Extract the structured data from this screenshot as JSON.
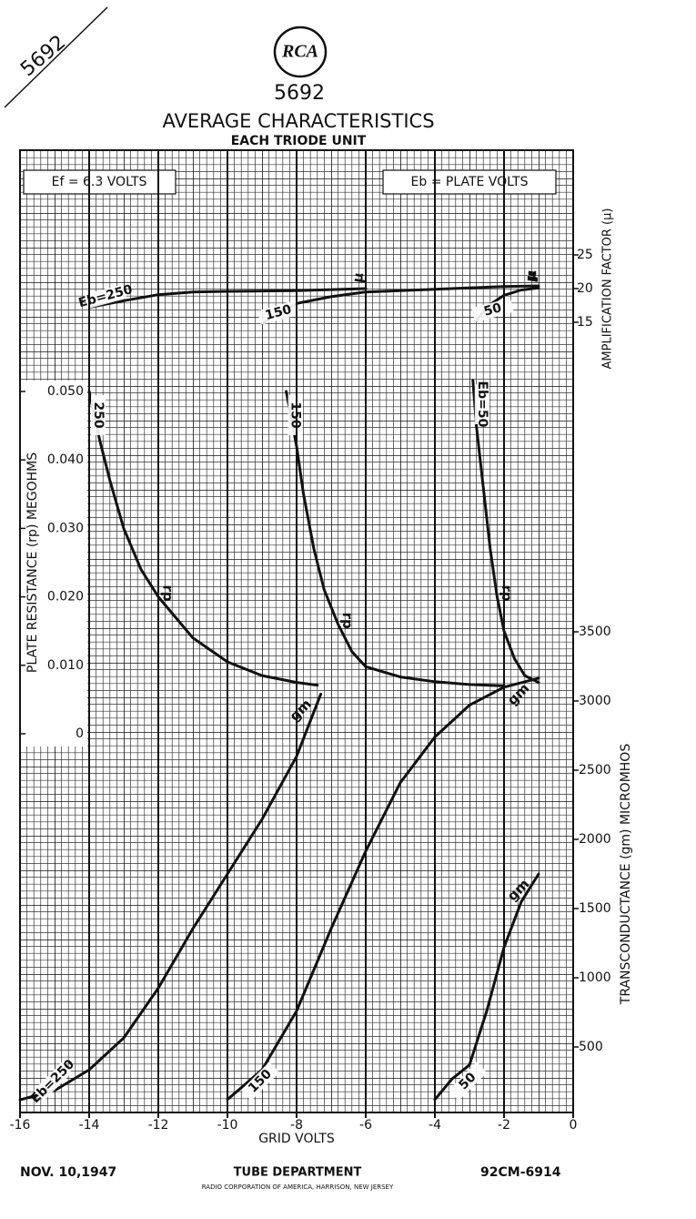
{
  "header": {
    "corner": "5692",
    "logo": "RCA",
    "tube": "5692",
    "title": "AVERAGE CHARACTERISTICS",
    "subtitle": "EACH TRIODE UNIT"
  },
  "footer": {
    "date": "NOV. 10,1947",
    "department": "TUBE DEPARTMENT",
    "company": "RADIO CORPORATION OF AMERICA, HARRISON, NEW JERSEY",
    "code": "92CM-6914"
  },
  "chart_data": [
    {
      "type": "line",
      "y_label": "AMPLIFICATION FACTOR (μ)",
      "curve_label": "μ",
      "annotations": [
        "Ef = 6.3 VOLTS",
        "Eb = PLATE VOLTS"
      ],
      "xlim": [
        -16,
        0
      ],
      "ylim": [
        14,
        26
      ],
      "yticks": [
        15,
        20,
        25
      ],
      "color": "#111111",
      "series": [
        {
          "name": "Eb=250",
          "x": [
            -14,
            -13,
            -12,
            -11,
            -10,
            -8,
            -6
          ],
          "values": [
            17.2,
            18.2,
            19.1,
            19.5,
            19.6,
            19.7,
            20.0
          ]
        },
        {
          "name": "150",
          "x": [
            -9,
            -8,
            -7,
            -6,
            -4,
            -2,
            -1
          ],
          "values": [
            14.8,
            17.8,
            18.8,
            19.5,
            19.9,
            20.3,
            20.4
          ]
        },
        {
          "name": "50",
          "x": [
            -2.8,
            -2.5,
            -2,
            -1.5,
            -1
          ],
          "values": [
            15.2,
            17.3,
            19.0,
            19.8,
            20.1
          ]
        }
      ]
    },
    {
      "type": "line",
      "y_label": "PLATE RESISTANCE (rp) MEGOHMS",
      "curve_label": "rp",
      "xlim": [
        -16,
        0
      ],
      "ylim": [
        0,
        0.05
      ],
      "yticks": [
        {
          "value": 0.05,
          "label": "0.050"
        },
        {
          "value": 0.04,
          "label": "0.040"
        },
        {
          "value": 0.03,
          "label": "0.030"
        },
        {
          "value": 0.02,
          "label": "0.020"
        },
        {
          "value": 0.01,
          "label": "0.010"
        },
        0
      ],
      "color": "#111111",
      "series": [
        {
          "name": "250",
          "x": [
            -14,
            -13.7,
            -13.4,
            -13,
            -12.5,
            -12,
            -11,
            -10,
            -9,
            -8,
            -7.4
          ],
          "values": [
            0.05,
            0.043,
            0.037,
            0.03,
            0.024,
            0.02,
            0.014,
            0.0105,
            0.0085,
            0.0075,
            0.0071
          ]
        },
        {
          "name": "150",
          "x": [
            -8.3,
            -8,
            -7.8,
            -7.5,
            -7.2,
            -6.8,
            -6.4,
            -6,
            -5,
            -4,
            -3,
            -2
          ],
          "values": [
            0.05,
            0.042,
            0.035,
            0.027,
            0.021,
            0.016,
            0.012,
            0.0098,
            0.0083,
            0.0076,
            0.0072,
            0.007
          ]
        },
        {
          "name": "Eb=50",
          "x": [
            -2.9,
            -2.8,
            -2.6,
            -2.4,
            -2.2,
            -2,
            -1.7,
            -1.4,
            -1
          ],
          "values": [
            0.0516,
            0.045,
            0.036,
            0.027,
            0.02,
            0.015,
            0.011,
            0.0085,
            0.0075
          ]
        }
      ]
    },
    {
      "type": "line",
      "y_label": "TRANSCONDUCTANCE (gm) MICROMHOS",
      "curve_label": "gm",
      "x_label": "GRID VOLTS",
      "xlim": [
        -16,
        0
      ],
      "xticks": [
        -16,
        -14,
        -12,
        -10,
        -8,
        -6,
        -4,
        -2,
        0
      ],
      "ylim": [
        0,
        3500
      ],
      "yticks": [
        500,
        1000,
        1500,
        2000,
        2500,
        3000,
        3500
      ],
      "color": "#111111",
      "series": [
        {
          "name": "Eb=250",
          "x": [
            -16,
            -15,
            -14,
            -13,
            -12,
            -11,
            -10,
            -9,
            -8,
            -7.3
          ],
          "values": [
            118,
            185,
            335,
            565,
            925,
            1355,
            1750,
            2145,
            2600,
            3050
          ]
        },
        {
          "name": "150",
          "x": [
            -10,
            -9,
            -8,
            -7,
            -6,
            -5,
            -4,
            -3,
            -2,
            -1
          ],
          "values": [
            120,
            335,
            760,
            1355,
            1915,
            2410,
            2740,
            2970,
            3100,
            3165
          ]
        },
        {
          "name": "50",
          "x": [
            -4,
            -3.5,
            -3,
            -2.5,
            -2,
            -1.5,
            -1
          ],
          "values": [
            120,
            270,
            370,
            760,
            1220,
            1550,
            1750
          ]
        }
      ]
    }
  ]
}
